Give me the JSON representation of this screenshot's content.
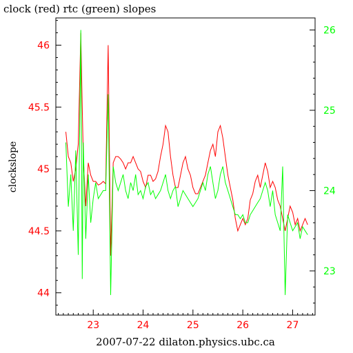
{
  "chart_data": {
    "type": "line",
    "title": "clock (red) rtc (green) slopes",
    "xlabel": "2007-07-22 dilaton.physics.ubc.ca",
    "ylabel": "clockslope",
    "xlim": [
      22.25,
      27.45
    ],
    "ylim_left": [
      43.82,
      46.22
    ],
    "ylim_right": [
      22.45,
      26.15
    ],
    "x_ticks": [
      23,
      24,
      25,
      26,
      27
    ],
    "y_ticks_left": [
      44,
      44.5,
      45,
      45.5,
      46
    ],
    "y_ticks_right": [
      23,
      24,
      25,
      26
    ],
    "x_tick_labels": [
      "23",
      "24",
      "25",
      "26",
      "27"
    ],
    "y_tick_labels_left": [
      "44",
      "44.5",
      "45",
      "45.5",
      "46"
    ],
    "y_tick_labels_right": [
      "23",
      "24",
      "25",
      "26"
    ],
    "grid": false,
    "colors": {
      "clock": "#ff0000",
      "rtc": "#00ff00",
      "axes": "#000000"
    },
    "series": [
      {
        "key": "clock",
        "axis": "left",
        "x": [
          22.45,
          22.5,
          22.55,
          22.6,
          22.65,
          22.7,
          22.75,
          22.78,
          22.8,
          22.85,
          22.9,
          22.95,
          23.0,
          23.05,
          23.1,
          23.15,
          23.2,
          23.25,
          23.3,
          23.35,
          23.4,
          23.45,
          23.5,
          23.55,
          23.6,
          23.65,
          23.7,
          23.75,
          23.8,
          23.85,
          23.9,
          23.95,
          24.0,
          24.05,
          24.1,
          24.15,
          24.2,
          24.25,
          24.3,
          24.35,
          24.4,
          24.45,
          24.5,
          24.55,
          24.6,
          24.65,
          24.7,
          24.75,
          24.8,
          24.85,
          24.9,
          24.95,
          25.0,
          25.05,
          25.1,
          25.15,
          25.2,
          25.25,
          25.3,
          25.35,
          25.4,
          25.45,
          25.5,
          25.55,
          25.6,
          25.65,
          25.7,
          25.75,
          25.8,
          25.85,
          25.9,
          25.95,
          26.0,
          26.05,
          26.1,
          26.15,
          26.2,
          26.25,
          26.3,
          26.35,
          26.4,
          26.45,
          26.5,
          26.55,
          26.6,
          26.65,
          26.7,
          26.75,
          26.8,
          26.85,
          26.9,
          26.95,
          27.0,
          27.05,
          27.1,
          27.15,
          27.2,
          27.25,
          27.3
        ],
        "y": [
          45.3,
          45.1,
          45.05,
          44.9,
          45.0,
          45.2,
          46.1,
          45.5,
          45.1,
          44.7,
          45.05,
          44.95,
          44.9,
          44.9,
          44.87,
          44.88,
          44.9,
          44.88,
          46.0,
          44.3,
          45.05,
          45.1,
          45.1,
          45.08,
          45.05,
          45.0,
          45.05,
          45.05,
          45.1,
          45.05,
          45.0,
          44.98,
          44.9,
          44.85,
          44.95,
          44.95,
          44.9,
          44.92,
          44.98,
          45.1,
          45.2,
          45.35,
          45.3,
          45.1,
          44.95,
          44.85,
          44.85,
          44.95,
          45.05,
          45.1,
          45.0,
          44.95,
          44.85,
          44.8,
          44.8,
          44.85,
          44.9,
          44.95,
          45.05,
          45.15,
          45.2,
          45.1,
          45.3,
          45.35,
          45.25,
          45.1,
          44.95,
          44.85,
          44.75,
          44.6,
          44.5,
          44.55,
          44.6,
          44.55,
          44.6,
          44.75,
          44.8,
          44.9,
          44.95,
          44.85,
          44.95,
          45.05,
          44.98,
          44.85,
          44.9,
          44.85,
          44.75,
          44.7,
          44.6,
          44.5,
          44.6,
          44.7,
          44.65,
          44.55,
          44.6,
          44.5,
          44.55,
          44.6,
          44.55
        ]
      },
      {
        "key": "rtc",
        "axis": "right",
        "x": [
          22.45,
          22.5,
          22.55,
          22.6,
          22.65,
          22.7,
          22.75,
          22.78,
          22.8,
          22.85,
          22.9,
          22.95,
          23.0,
          23.05,
          23.1,
          23.15,
          23.2,
          23.25,
          23.3,
          23.35,
          23.4,
          23.45,
          23.5,
          23.55,
          23.6,
          23.65,
          23.7,
          23.75,
          23.8,
          23.85,
          23.9,
          23.95,
          24.0,
          24.05,
          24.1,
          24.15,
          24.2,
          24.25,
          24.3,
          24.35,
          24.4,
          24.45,
          24.5,
          24.55,
          24.6,
          24.65,
          24.7,
          24.75,
          24.8,
          24.85,
          24.9,
          24.95,
          25.0,
          25.05,
          25.1,
          25.15,
          25.2,
          25.25,
          25.3,
          25.35,
          25.4,
          25.45,
          25.5,
          25.55,
          25.6,
          25.65,
          25.7,
          25.75,
          25.8,
          25.85,
          25.9,
          25.95,
          26.0,
          26.05,
          26.1,
          26.15,
          26.2,
          26.25,
          26.3,
          26.35,
          26.4,
          26.45,
          26.5,
          26.55,
          26.6,
          26.65,
          26.7,
          26.75,
          26.8,
          26.85,
          26.9,
          26.95,
          27.0,
          27.05,
          27.1,
          27.15,
          27.2,
          27.25,
          27.3
        ],
        "y": [
          24.6,
          23.8,
          24.2,
          23.5,
          24.5,
          23.2,
          26.0,
          22.9,
          24.6,
          23.4,
          24.2,
          23.6,
          23.9,
          24.1,
          23.9,
          23.95,
          24.0,
          24.0,
          25.2,
          22.7,
          24.3,
          24.1,
          24.0,
          24.1,
          24.2,
          24.0,
          23.9,
          24.1,
          24.0,
          24.2,
          23.95,
          24.0,
          23.9,
          24.05,
          24.1,
          23.95,
          24.0,
          23.9,
          23.95,
          24.0,
          24.1,
          24.2,
          24.0,
          23.9,
          24.0,
          24.05,
          23.8,
          23.9,
          24.0,
          23.95,
          23.9,
          23.85,
          23.8,
          23.85,
          23.9,
          24.0,
          24.1,
          24.0,
          24.2,
          24.3,
          24.1,
          23.9,
          24.0,
          24.2,
          24.3,
          24.1,
          24.0,
          23.9,
          23.8,
          23.7,
          23.7,
          23.65,
          23.7,
          23.6,
          23.6,
          23.7,
          23.75,
          23.8,
          23.85,
          23.9,
          24.0,
          24.1,
          24.0,
          23.8,
          24.0,
          23.7,
          23.6,
          23.5,
          24.3,
          22.7,
          23.7,
          23.6,
          23.5,
          23.55,
          23.6,
          23.4,
          23.55,
          23.5,
          23.45
        ]
      }
    ]
  }
}
